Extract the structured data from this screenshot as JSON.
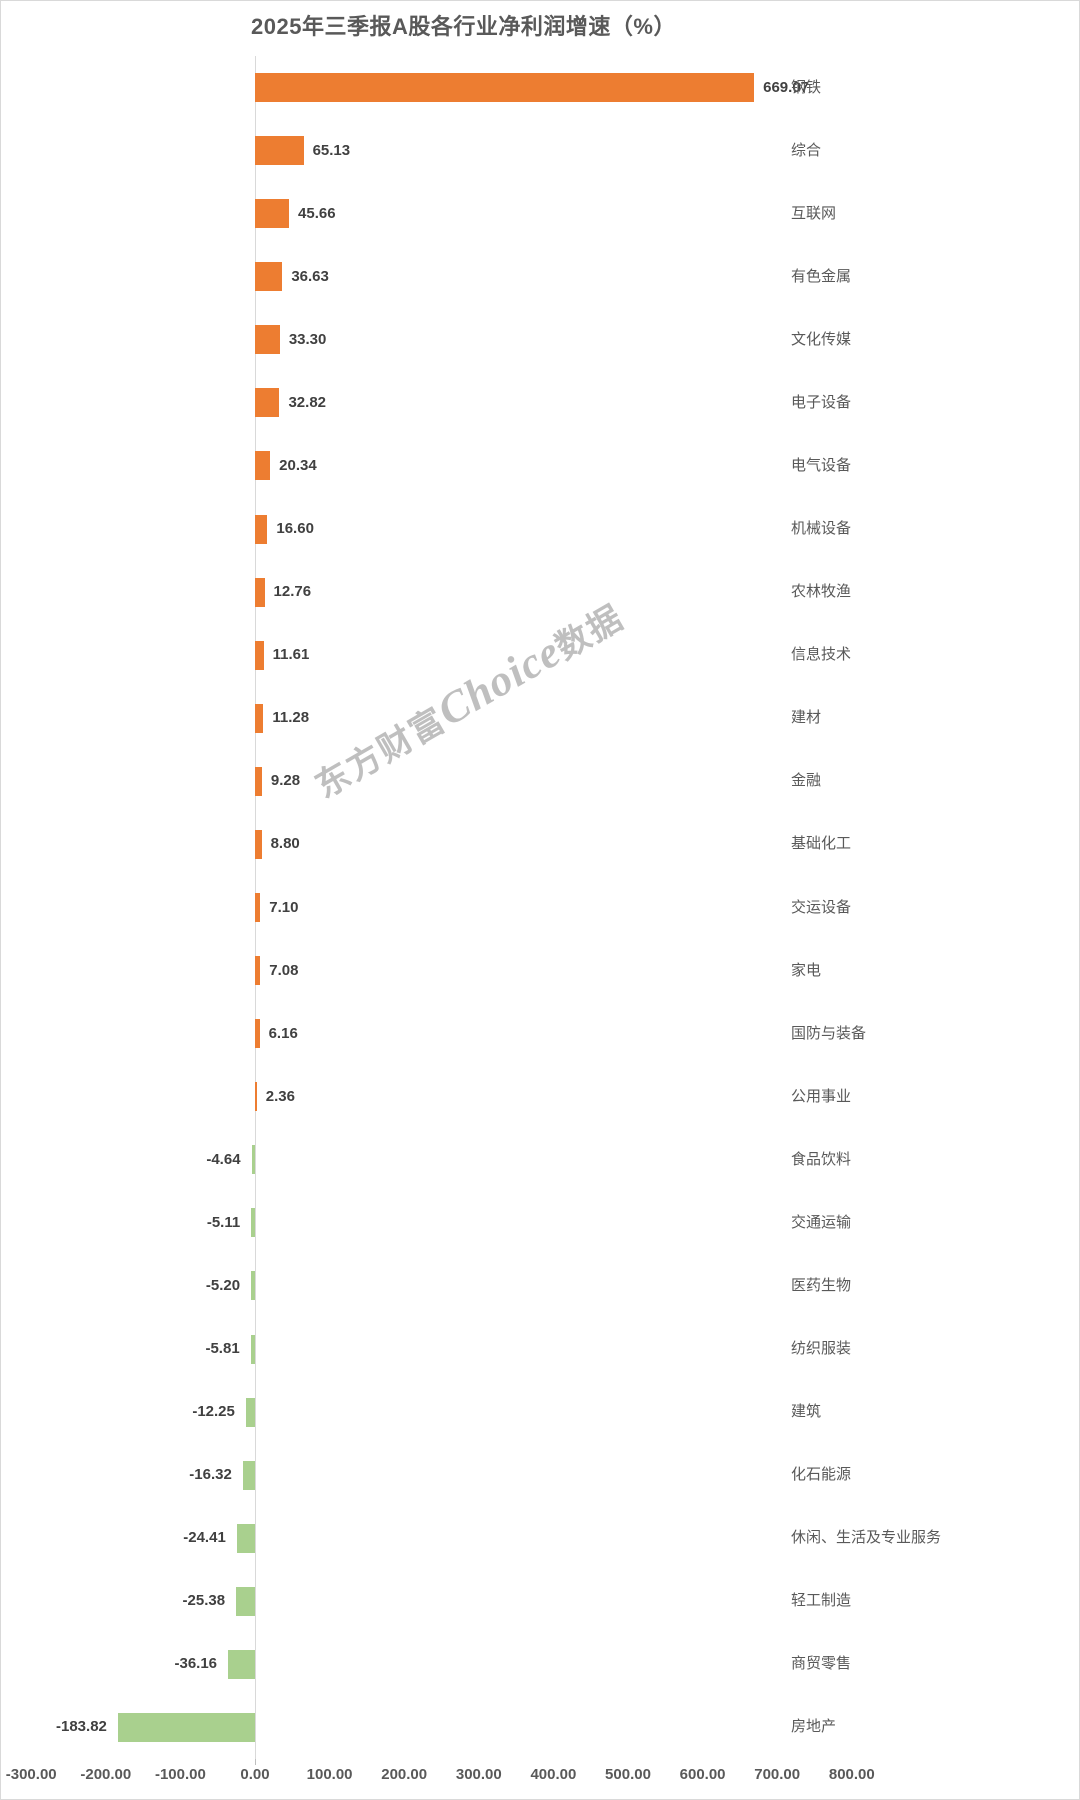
{
  "title": "2025年三季报A股各行业净利润增速（%）",
  "watermark": {
    "prefix": "东方财富",
    "brand": "Choice",
    "suffix": "数据"
  },
  "chart_data": {
    "type": "bar",
    "orientation": "horizontal",
    "title": "2025年三季报A股各行业净利润增速（%）",
    "xlabel": "",
    "ylabel": "",
    "xlim": [
      -300,
      800
    ],
    "grid": "zero-line-only",
    "legend": "none",
    "value_label_format": "0.00",
    "categories": [
      "钢铁",
      "综合",
      "互联网",
      "有色金属",
      "文化传媒",
      "电子设备",
      "电气设备",
      "机械设备",
      "农林牧渔",
      "信息技术",
      "建材",
      "金融",
      "基础化工",
      "交运设备",
      "家电",
      "国防与装备",
      "公用事业",
      "食品饮料",
      "交通运输",
      "医药生物",
      "纺织服装",
      "建筑",
      "化石能源",
      "休闲、生活及专业服务",
      "轻工制造",
      "商贸零售",
      "房地产"
    ],
    "values": [
      669.07,
      65.13,
      45.66,
      36.63,
      33.3,
      32.82,
      20.34,
      16.6,
      12.76,
      11.61,
      11.28,
      9.28,
      8.8,
      7.1,
      7.08,
      6.16,
      2.36,
      -4.64,
      -5.11,
      -5.2,
      -5.81,
      -12.25,
      -16.32,
      -24.41,
      -25.38,
      -36.16,
      -183.82
    ],
    "x_ticks": [
      -300,
      -200,
      -100,
      0,
      100,
      200,
      300,
      400,
      500,
      600,
      700,
      800
    ],
    "positive_color": "#ED7D31",
    "negative_color": "#A9D08E",
    "axis_line_color": "#D9D9D9",
    "title_color": "#595959",
    "label_color": "#404040",
    "category_color": "#595959",
    "tick_label_color": "#595959"
  }
}
